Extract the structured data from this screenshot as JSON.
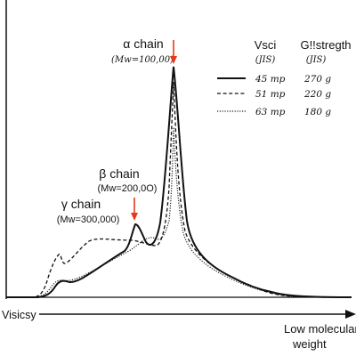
{
  "chart_data": {
    "type": "line",
    "xlabel_left": "Visicsy",
    "xlabel_right_line1": "Low molecular",
    "xlabel_right_line2": "weight",
    "annotations": [
      {
        "id": "alpha",
        "name": "α chain",
        "mw": "(Mw=100,00)",
        "color": "#e8371b"
      },
      {
        "id": "beta",
        "name": "β chain",
        "mw": "(Mw=200,0O)",
        "color": "#e8371b"
      },
      {
        "id": "gamma",
        "name": "γ chain",
        "mw": "(Mw=300,000)"
      }
    ],
    "legend": {
      "placement": "top-right",
      "col1_header": "Vsci",
      "col1_sub": "(JIS)",
      "col2_header": "G!!stregth",
      "col2_sub": "(JIS)",
      "rows": [
        {
          "style": "solid",
          "col1": "45 mp",
          "col2": "270 g"
        },
        {
          "style": "dashed",
          "col1": "51 mp",
          "col2": "220 g"
        },
        {
          "style": "dotted",
          "col1": "63 mp",
          "col2": "180 g"
        }
      ]
    },
    "series": [
      {
        "style": "solid",
        "legend_value": "45 mp"
      },
      {
        "style": "dashed",
        "legend_value": "51 mp"
      },
      {
        "style": "dotted",
        "legend_value": "63 mp"
      }
    ]
  }
}
